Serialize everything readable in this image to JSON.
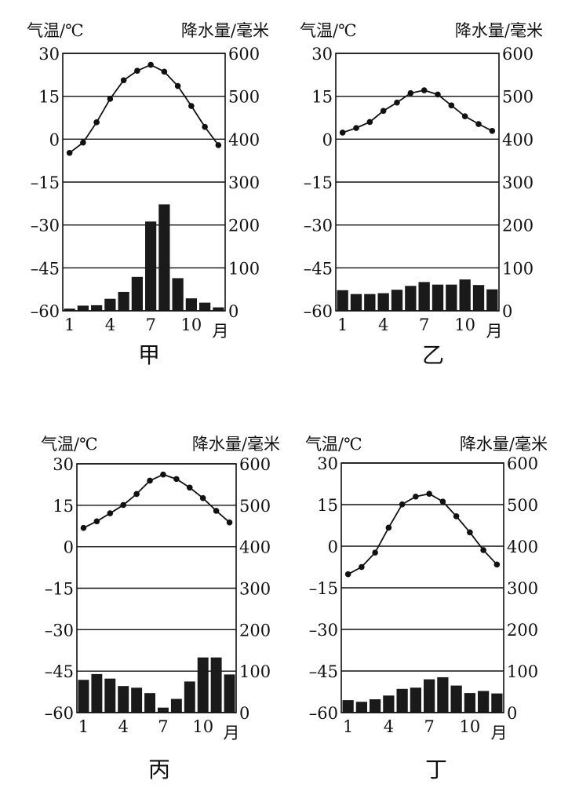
{
  "chart_data": [
    {
      "type": "bar+line",
      "title": "甲",
      "ylabel_left": "气温/℃",
      "ylabel_right": "降水量/毫米",
      "xlabel": "月",
      "x_tick_labels": [
        "1",
        "4",
        "7",
        "10"
      ],
      "left_ticks": [
        "30",
        "15",
        "0",
        "–15",
        "–30",
        "–45",
        "–60"
      ],
      "right_ticks": [
        "600",
        "500",
        "400",
        "300",
        "200",
        "100",
        "0"
      ],
      "ylim_temp": [
        -60,
        30
      ],
      "ylim_precip": [
        0,
        600
      ],
      "grid": true,
      "months": [
        1,
        2,
        3,
        4,
        5,
        6,
        7,
        8,
        9,
        10,
        11,
        12
      ],
      "temperature": [
        -4.8,
        -1.2,
        5.9,
        14.1,
        20.6,
        23.9,
        26,
        23.6,
        18.6,
        11.6,
        4.3,
        -2.1
      ],
      "precipitation": [
        5,
        12,
        13,
        28,
        44,
        79,
        208,
        248,
        76,
        29,
        19,
        8
      ]
    },
    {
      "type": "bar+line",
      "title": "乙",
      "ylabel_left": "气温/℃",
      "ylabel_right": "降水量/毫米",
      "xlabel": "月",
      "x_tick_labels": [
        "1",
        "4",
        "7",
        "10"
      ],
      "left_ticks": [
        "30",
        "15",
        "0",
        "–15",
        "–30",
        "–45",
        "–60"
      ],
      "right_ticks": [
        "600",
        "500",
        "400",
        "300",
        "200",
        "100",
        "0"
      ],
      "ylim_temp": [
        -60,
        30
      ],
      "ylim_precip": [
        0,
        600
      ],
      "grid": true,
      "months": [
        1,
        2,
        3,
        4,
        5,
        6,
        7,
        8,
        9,
        10,
        11,
        12
      ],
      "temperature": [
        2.3,
        3.9,
        6,
        9.9,
        12.8,
        16.1,
        17.1,
        15.6,
        11.8,
        8,
        5.3,
        2.9
      ],
      "precipitation": [
        48,
        39,
        39,
        41,
        49,
        58,
        67,
        61,
        61,
        73,
        60,
        50
      ]
    },
    {
      "type": "bar+line",
      "title": "丙",
      "ylabel_left": "气温/℃",
      "ylabel_right": "降水量/毫米",
      "xlabel": "月",
      "x_tick_labels": [
        "1",
        "4",
        "7",
        "10"
      ],
      "left_ticks": [
        "30",
        "15",
        "0",
        "–15",
        "–30",
        "–45",
        "–60"
      ],
      "right_ticks": [
        "600",
        "500",
        "400",
        "300",
        "200",
        "100",
        "0"
      ],
      "ylim_temp": [
        -60,
        30
      ],
      "ylim_precip": [
        0,
        600
      ],
      "grid": true,
      "months": [
        1,
        2,
        3,
        4,
        5,
        6,
        7,
        8,
        9,
        10,
        11,
        12
      ],
      "temperature": [
        6.8,
        9.2,
        12.1,
        15.1,
        19.1,
        23.9,
        26.1,
        24.5,
        21.4,
        17.6,
        13,
        8.8
      ],
      "precipitation": [
        79,
        93,
        82,
        64,
        60,
        47,
        12,
        33,
        75,
        133,
        133,
        92
      ]
    },
    {
      "type": "bar+line",
      "title": "丁",
      "ylabel_left": "气温/℃",
      "ylabel_right": "降水量/毫米",
      "xlabel": "月",
      "x_tick_labels": [
        "1",
        "4",
        "7",
        "10"
      ],
      "left_ticks": [
        "30",
        "15",
        "0",
        "–15",
        "–30",
        "–45",
        "–60"
      ],
      "right_ticks": [
        "600",
        "500",
        "400",
        "300",
        "200",
        "100",
        "0"
      ],
      "ylim_temp": [
        -60,
        30
      ],
      "ylim_precip": [
        0,
        600
      ],
      "grid": true,
      "months": [
        1,
        2,
        3,
        4,
        5,
        6,
        7,
        8,
        9,
        10,
        11,
        12
      ],
      "temperature": [
        -10.1,
        -7.5,
        -2.3,
        6.7,
        15.1,
        17.9,
        18.9,
        16.1,
        10.8,
        5,
        -1.4,
        -6.6
      ],
      "precipitation": [
        30,
        26,
        32,
        41,
        57,
        60,
        80,
        85,
        65,
        47,
        52,
        46
      ]
    }
  ]
}
